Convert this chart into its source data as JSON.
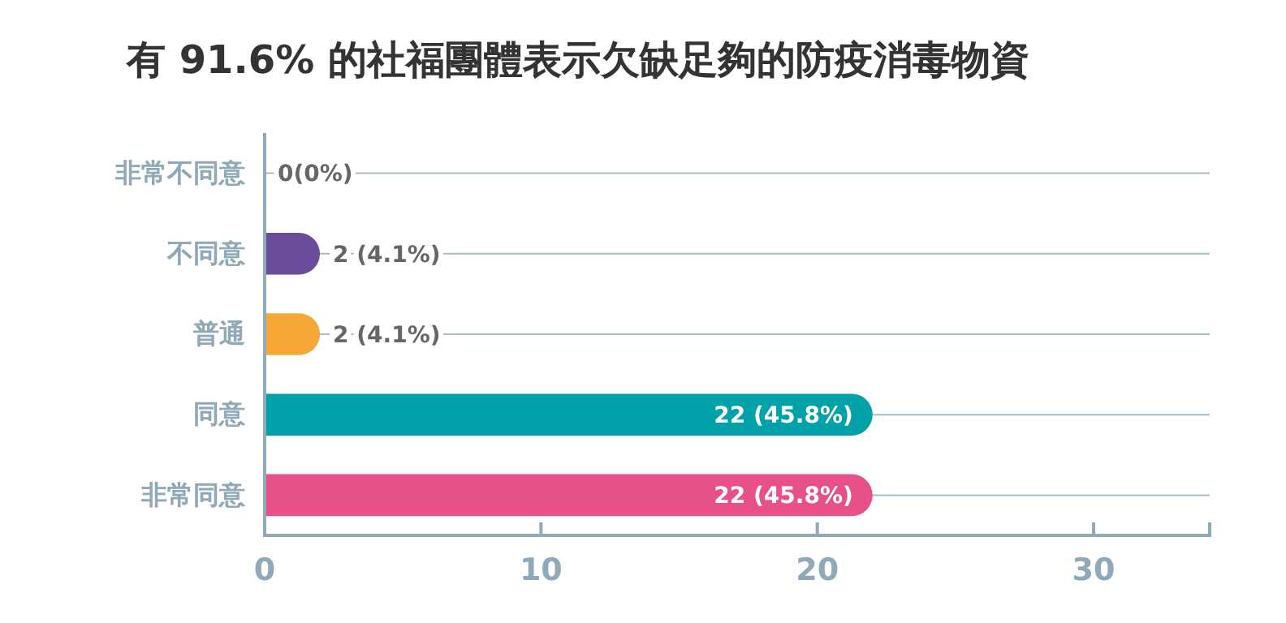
{
  "chart_data": {
    "type": "bar",
    "orientation": "horizontal",
    "title": "有 91.6% 的社福團體表示欠缺足夠的防疫消毒物資",
    "categories": [
      "非常不同意",
      "不同意",
      "普通",
      "同意",
      "非常同意"
    ],
    "values": [
      0,
      2,
      2,
      22,
      22
    ],
    "colors": [
      "#9aa9c7",
      "#6a4c9c",
      "#f5a836",
      "#00a1a8",
      "#e8508a"
    ],
    "value_labels": [
      "0(0%)",
      "2 (4.1%)",
      "2 (4.1%)",
      "22 (45.8%)",
      "22 (45.8%)"
    ],
    "xlim": [
      0,
      34.2
    ],
    "xticks": [
      0,
      10,
      20,
      30
    ],
    "grid": "y"
  }
}
